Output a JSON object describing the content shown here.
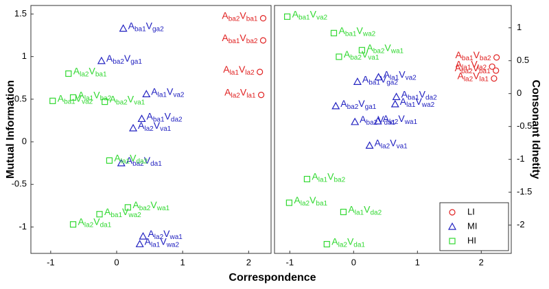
{
  "chart_data": [
    {
      "type": "scatter",
      "x_label": "Correspondence",
      "y_label": "Mutual Information",
      "xlim": [
        -1.3,
        2.34
      ],
      "xticks": [
        -1,
        0,
        1,
        2
      ],
      "ylim": [
        -1.31,
        1.6
      ],
      "yticks": [
        -1,
        -0.5,
        0,
        0.5,
        1,
        1.5
      ],
      "series": [
        {
          "name": "LI",
          "color": "#e02020",
          "marker": "circle",
          "x": [
            2.22,
            2.22,
            2.17,
            2.19
          ],
          "values": [
            1.45,
            1.19,
            0.82,
            0.55
          ],
          "labels": [
            "Aba2Vba1",
            "Aba1Vba2",
            "Ala1Vla2",
            "Ala2Vla1"
          ]
        },
        {
          "name": "MI",
          "color": "#2020c0",
          "marker": "triangle",
          "x": [
            0.1,
            -0.23,
            0.45,
            0.38,
            0.25,
            0.07,
            0.4,
            0.35
          ],
          "values": [
            1.33,
            0.95,
            0.56,
            0.27,
            0.16,
            -0.25,
            -1.11,
            -1.2
          ],
          "labels": [
            "Aba1Vga2",
            "Aba2Vga1",
            "Ala1Vva2",
            "Aba1Vda2",
            "Ala2Vva1",
            "Aba2Vda1",
            "Ala2Vwa1",
            "Ala1Vwa2"
          ]
        },
        {
          "name": "HI",
          "color": "#30d830",
          "marker": "square",
          "x": [
            -0.73,
            -0.97,
            -0.66,
            -0.18,
            -0.11,
            -0.26,
            0.17,
            -0.66
          ],
          "values": [
            0.8,
            0.48,
            0.52,
            0.47,
            -0.22,
            -0.85,
            -0.77,
            -0.97
          ],
          "labels": [
            "Ala2Vba1",
            "Aba1Vva2",
            "Ala1Vba2",
            "Aba2Vva1",
            "Ala1Vda2",
            "Aba1Vwa2",
            "Aba2Vwa1",
            "Ala2Vda1"
          ]
        }
      ]
    },
    {
      "type": "scatter",
      "y_label": "Consonant Idnetity",
      "legend": "lower right",
      "xlim": [
        -1.24,
        2.47
      ],
      "xticks": [
        -1,
        0,
        1,
        2
      ],
      "y2lim": [
        -2.43,
        1.34
      ],
      "y2ticks": [
        -2,
        -1.5,
        -1,
        -0.5,
        0,
        0.5,
        1
      ],
      "series": [
        {
          "name": "LI",
          "color": "#e02020",
          "marker": "circle",
          "axis": "y2",
          "x": [
            2.24,
            2.17,
            2.23,
            2.2
          ],
          "values": [
            0.55,
            0.41,
            0.35,
            0.23
          ],
          "labels": [
            "Aba1Vba2",
            "Ala1Vla2",
            "Aba2Vba1",
            "Ala2Vla1"
          ]
        },
        {
          "name": "MI",
          "color": "#2020c0",
          "marker": "triangle",
          "axis": "y2",
          "x": [
            0.06,
            0.39,
            -0.28,
            0.67,
            0.65,
            0.38,
            0.02,
            0.25
          ],
          "values": [
            0.18,
            0.25,
            -0.19,
            -0.05,
            -0.16,
            -0.42,
            -0.43,
            -0.79
          ],
          "labels": [
            "Aba1Vga2",
            "Ala1Vva2",
            "Aba2Vga1",
            "Aba1Vda2",
            "Ala1Vwa2",
            "Ala2Vwa1",
            "Aba2Vda1",
            "Ala2Vva1"
          ]
        },
        {
          "name": "HI",
          "color": "#30d830",
          "marker": "square",
          "axis": "y2",
          "x": [
            -1.04,
            -0.31,
            0.13,
            -0.23,
            -0.73,
            -1.01,
            -0.16,
            -0.42
          ],
          "values": [
            1.17,
            0.92,
            0.66,
            0.56,
            -1.3,
            -1.66,
            -1.8,
            -2.29
          ],
          "labels": [
            "Aba1Vva2",
            "Aba1Vwa2",
            "Aba2Vwa1",
            "Aba2Vva1",
            "Ala1Vba2",
            "Ala2Vba1",
            "Ala1Vda2",
            "Ala2Vda1"
          ]
        }
      ]
    }
  ]
}
